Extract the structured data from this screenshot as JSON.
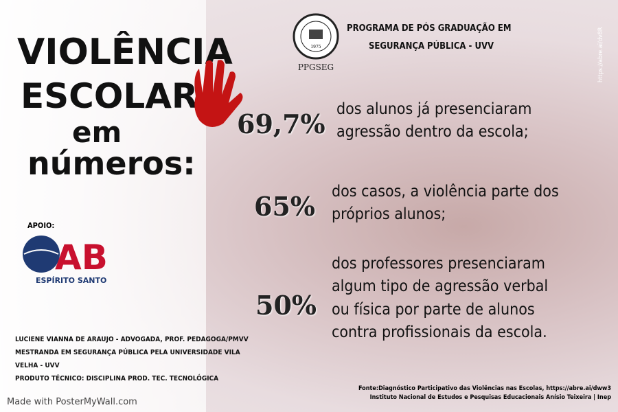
{
  "title": {
    "line1": "VIOLÊNCIA",
    "line2": "ESCOLAR",
    "line3": "em",
    "line4": "números:"
  },
  "header": {
    "seal_label": "PPGSEG",
    "seal_year": "1975",
    "program_line1": "PROGRAMA DE PÓS GRADUAÇÃO  EM",
    "program_line2": "SEGURANÇA PÚBLICA - UVV"
  },
  "side_url": "https://abre.ai/dv8R",
  "stats": [
    {
      "percent": "69,7%",
      "lines": [
        "dos alunos já presenciaram",
        "agressão dentro da escola;"
      ]
    },
    {
      "percent": "65%",
      "lines": [
        "dos casos, a violência parte dos",
        "próprios alunos;"
      ]
    },
    {
      "percent": "50%",
      "lines": [
        "dos professores presenciaram",
        "algum tipo de agressão verbal",
        "ou física por parte de alunos",
        "contra profissionais da escola."
      ]
    }
  ],
  "support": {
    "label": "APOIO:",
    "logo_letters": "AB",
    "logo_caption": "ESPÍRITO SANTO"
  },
  "credits": [
    "LUCIENE VIANNA DE ARAUJO - ADVOGADA, PROF. PEDAGOGA/PMVV",
    "MESTRANDA EM SEGURANÇA PÚBLICA PELA UNIVERSIDADE VILA",
    "VELHA - UVV",
    "PRODUTO TÉCNICO: DISCIPLINA PROD. TEC. TECNOLÓGICA"
  ],
  "source": [
    "Fonte:Diagnóstico Participativo das Violências nas Escolas, https://abre.ai/dww3",
    "Instituto Nacional de Estudos e Pesquisas Educacionais Anísio Teixeira | Inep"
  ],
  "watermark": "Made with PosterMyWall.com"
}
